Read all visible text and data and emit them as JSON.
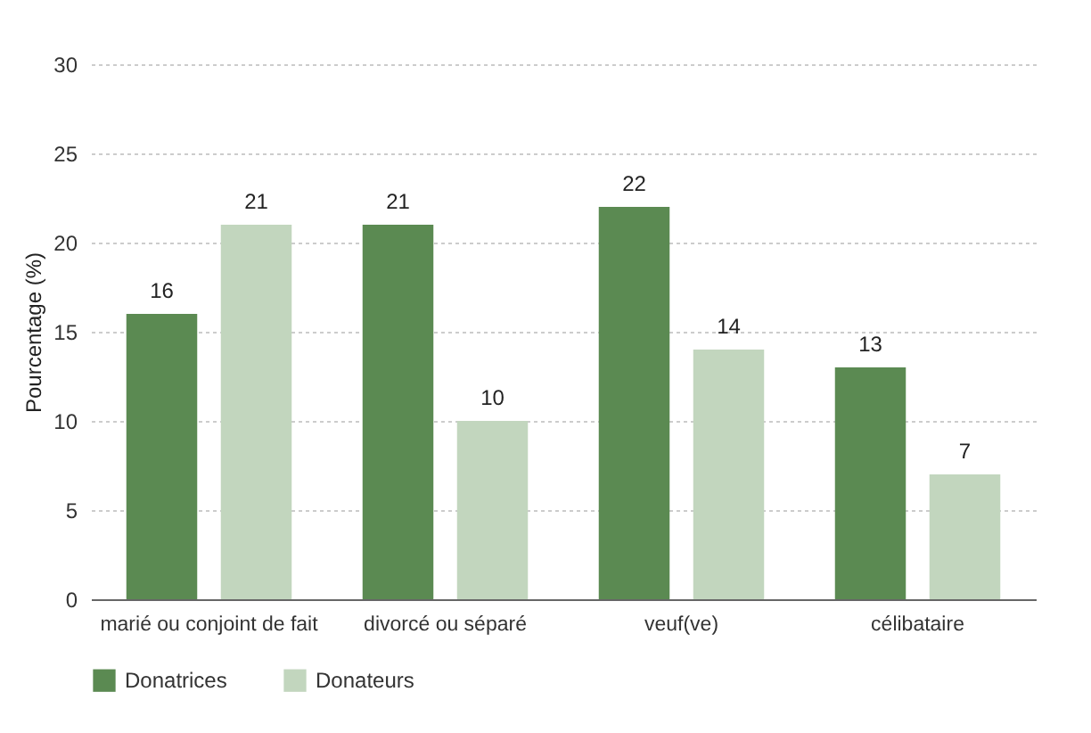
{
  "chart_data": {
    "type": "bar",
    "ylabel": "Pourcentage (%)",
    "categories": [
      "marié ou conjoint de fait",
      "divorcé ou séparé",
      "veuf(ve)",
      "célibataire"
    ],
    "series": [
      {
        "name": "Donatrices",
        "color": "#5b8a52",
        "values": [
          16,
          21,
          22,
          13
        ]
      },
      {
        "name": "Donateurs",
        "color": "#c2d6be",
        "values": [
          21,
          10,
          14,
          7
        ]
      }
    ],
    "ylim": [
      0,
      30
    ],
    "yticks": [
      0,
      5,
      10,
      15,
      20,
      25,
      30
    ],
    "grid": "y",
    "data_labels": true,
    "legend": "bottom"
  }
}
